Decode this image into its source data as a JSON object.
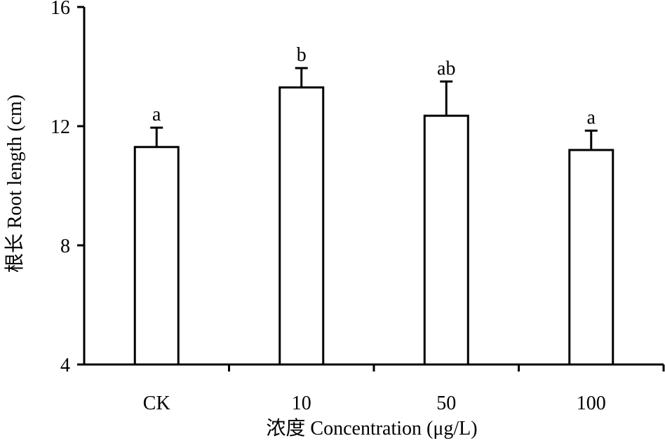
{
  "chart_data": {
    "type": "bar",
    "categories": [
      "CK",
      "10",
      "50",
      "100"
    ],
    "values": [
      11.3,
      13.3,
      12.35,
      11.2
    ],
    "errors": [
      0.65,
      0.65,
      1.15,
      0.65
    ],
    "significance_letters": [
      "a",
      "b",
      "ab",
      "a"
    ],
    "xlabel": "浓度 Concentration (μg/L)",
    "ylabel": "根长 Root length (cm)",
    "ylim": [
      4,
      16
    ],
    "yticks": [
      4,
      8,
      12,
      16
    ],
    "ytick_labels": [
      "4",
      "8",
      "12",
      "16"
    ],
    "grid": false,
    "legend": "none",
    "colors": {
      "bar_fill": "#ffffff",
      "bar_stroke": "#000000",
      "axis": "#000000"
    }
  }
}
